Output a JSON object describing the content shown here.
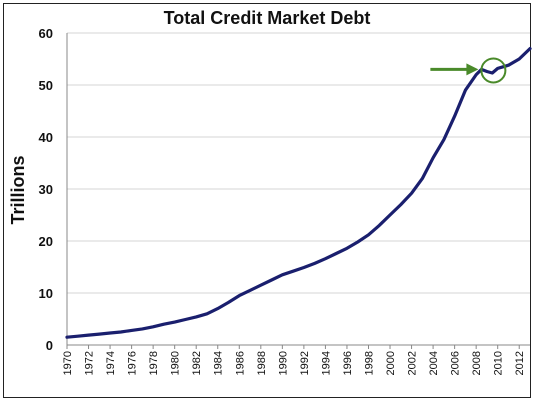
{
  "chart_data": {
    "type": "line",
    "title": "Total Credit Market Debt",
    "xlabel": "",
    "ylabel": "Trillions",
    "ylim": [
      0,
      60
    ],
    "xlim": [
      1970,
      2013
    ],
    "yticks": [
      0,
      10,
      20,
      30,
      40,
      50,
      60
    ],
    "xticks": [
      "1970",
      "1972",
      "1974",
      "1976",
      "1978",
      "1980",
      "1982",
      "1984",
      "1986",
      "1988",
      "1990",
      "1992",
      "1994",
      "1996",
      "1998",
      "2000",
      "2002",
      "2004",
      "2006",
      "2008",
      "2010",
      "2012"
    ],
    "grid": "horizontal",
    "line_color": "#1a1f6e",
    "annotation_color": "#4a8a2a",
    "series": [
      {
        "x": [
          1970,
          1971,
          1972,
          1973,
          1974,
          1975,
          1976,
          1977,
          1978,
          1979,
          1980,
          1981,
          1982,
          1983,
          1984,
          1985,
          1986,
          1987,
          1988,
          1989,
          1990,
          1991,
          1992,
          1993,
          1994,
          1995,
          1996,
          1997,
          1998,
          1999,
          2000,
          2001,
          2002,
          2003,
          2004,
          2005,
          2006,
          2007,
          2008,
          2008.5,
          2009,
          2009.5,
          2010,
          2010.5,
          2011,
          2012,
          2013
        ],
        "values": [
          1.5,
          1.7,
          1.9,
          2.1,
          2.3,
          2.5,
          2.8,
          3.1,
          3.5,
          4.0,
          4.4,
          4.9,
          5.4,
          6.0,
          7.0,
          8.2,
          9.5,
          10.5,
          11.5,
          12.5,
          13.5,
          14.2,
          14.9,
          15.7,
          16.6,
          17.6,
          18.6,
          19.8,
          21.2,
          23.0,
          25.0,
          27.0,
          29.2,
          32.0,
          36.0,
          39.5,
          44.0,
          49.0,
          52.0,
          53.0,
          52.6,
          52.3,
          53.2,
          53.5,
          53.8,
          55.0,
          57.0
        ]
      }
    ],
    "annotations": [
      {
        "type": "arrow",
        "point": [
          2009.6,
          53.0
        ]
      },
      {
        "type": "circle",
        "point": [
          2009.6,
          52.8
        ]
      }
    ]
  }
}
